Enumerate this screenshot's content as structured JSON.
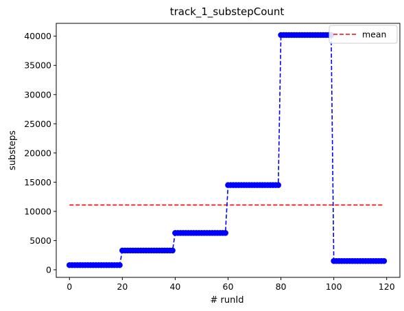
{
  "chart_data": {
    "type": "line",
    "title": "track_1_substepCount",
    "xlabel": "# runId",
    "ylabel": "substeps",
    "xlim": [
      -5,
      125
    ],
    "ylim": [
      -1300,
      42200
    ],
    "xticks": [
      0,
      20,
      40,
      60,
      80,
      100,
      120
    ],
    "xtick_labels": [
      "0",
      "20",
      "40",
      "60",
      "80",
      "100",
      "120"
    ],
    "yticks": [
      0,
      5000,
      10000,
      15000,
      20000,
      25000,
      30000,
      35000,
      40000
    ],
    "ytick_labels": [
      "0",
      "5000",
      "10000",
      "15000",
      "20000",
      "25000",
      "30000",
      "35000",
      "40000"
    ],
    "grid": false,
    "legend_position": "top-right",
    "series": [
      {
        "style": "dashed-with-markers",
        "color": "#0000ff",
        "x_start": 0,
        "step_size": 20,
        "step_values": [
          800,
          3300,
          6300,
          14500,
          40200,
          1500
        ]
      },
      {
        "name": "mean",
        "style": "dashed",
        "color": "#ff0000",
        "x": [
          0,
          119
        ],
        "y": [
          11100,
          11100
        ]
      }
    ]
  }
}
